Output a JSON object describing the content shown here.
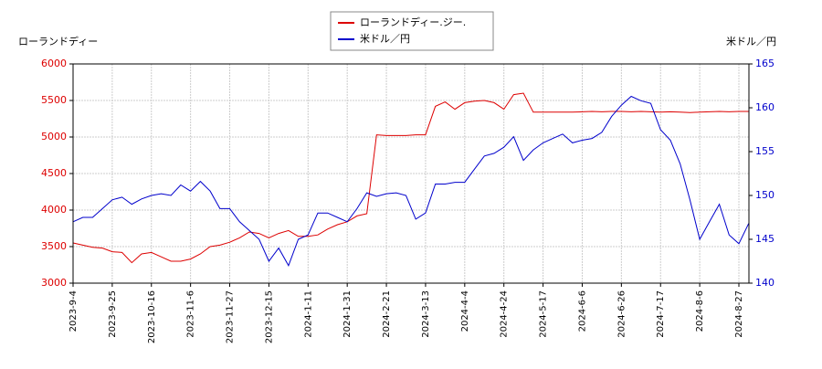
{
  "chart_data": {
    "type": "line",
    "ylabel": "ローランドディー",
    "y2label": "米ドル／円",
    "categories": [
      "2023-9-4",
      null,
      null,
      null,
      "2023-9-25",
      null,
      null,
      null,
      "2023-10-16",
      null,
      null,
      null,
      "2023-11-6",
      null,
      null,
      null,
      "2023-11-27",
      null,
      null,
      null,
      "2023-12-15",
      null,
      null,
      null,
      "2024-1-11",
      null,
      null,
      null,
      "2024-1-31",
      null,
      null,
      null,
      "2024-2-21",
      null,
      null,
      null,
      "2024-3-13",
      null,
      null,
      null,
      "2024-4-4",
      null,
      null,
      null,
      "2024-4-24",
      null,
      null,
      null,
      "2024-5-17",
      null,
      null,
      null,
      "2024-6-6",
      null,
      null,
      null,
      "2024-6-26",
      null,
      null,
      null,
      "2024-7-17",
      null,
      null,
      null,
      "2024-8-6",
      null,
      null,
      null,
      "2024-8-27",
      null
    ],
    "series": [
      {
        "name": "ローランドディー.ジー.",
        "color": "#dd0000",
        "axis": "y",
        "values": [
          3550,
          3520,
          3490,
          3480,
          3430,
          3420,
          3280,
          3400,
          3420,
          3360,
          3300,
          3300,
          3330,
          3400,
          3500,
          3520,
          3560,
          3620,
          3700,
          3680,
          3620,
          3680,
          3720,
          3640,
          3640,
          3660,
          3740,
          3800,
          3840,
          3920,
          3950,
          5030,
          5020,
          5020,
          5020,
          5030,
          5030,
          5420,
          5480,
          5380,
          5470,
          5490,
          5500,
          5470,
          5380,
          5580,
          5600,
          5340,
          5340,
          5340,
          5340,
          5340,
          5345,
          5350,
          5345,
          5350,
          5350,
          5345,
          5350,
          5345,
          5340,
          5345,
          5340,
          5335,
          5340,
          5345,
          5350,
          5345,
          5350,
          5350
        ]
      },
      {
        "name": "米ドル／円",
        "color": "#0000cc",
        "axis": "y2",
        "values": [
          147,
          147.5,
          147.5,
          148.5,
          149.5,
          149.8,
          149,
          149.6,
          150,
          150.2,
          150,
          151.2,
          150.5,
          151.6,
          150.5,
          148.5,
          148.5,
          147,
          146,
          145,
          142.5,
          144,
          142,
          145,
          145.5,
          148,
          148,
          147.5,
          147,
          148.5,
          150.3,
          149.9,
          150.2,
          150.3,
          150,
          147.3,
          148,
          151.3,
          151.3,
          151.5,
          151.5,
          153,
          154.5,
          154.8,
          155.5,
          156.7,
          154,
          155.2,
          156,
          156.5,
          157,
          156,
          156.3,
          156.5,
          157.2,
          159,
          160.3,
          161.3,
          160.8,
          160.5,
          157.5,
          156.3,
          153.6,
          149.5,
          145,
          147,
          149,
          145.5,
          144.5,
          146.8
        ]
      }
    ],
    "ylim": [
      3000,
      6000
    ],
    "yticks": [
      3000,
      3500,
      4000,
      4500,
      5000,
      5500,
      6000
    ],
    "y2lim": [
      140,
      165
    ],
    "y2ticks": [
      140,
      145,
      150,
      155,
      160,
      165
    ],
    "grid": true
  }
}
